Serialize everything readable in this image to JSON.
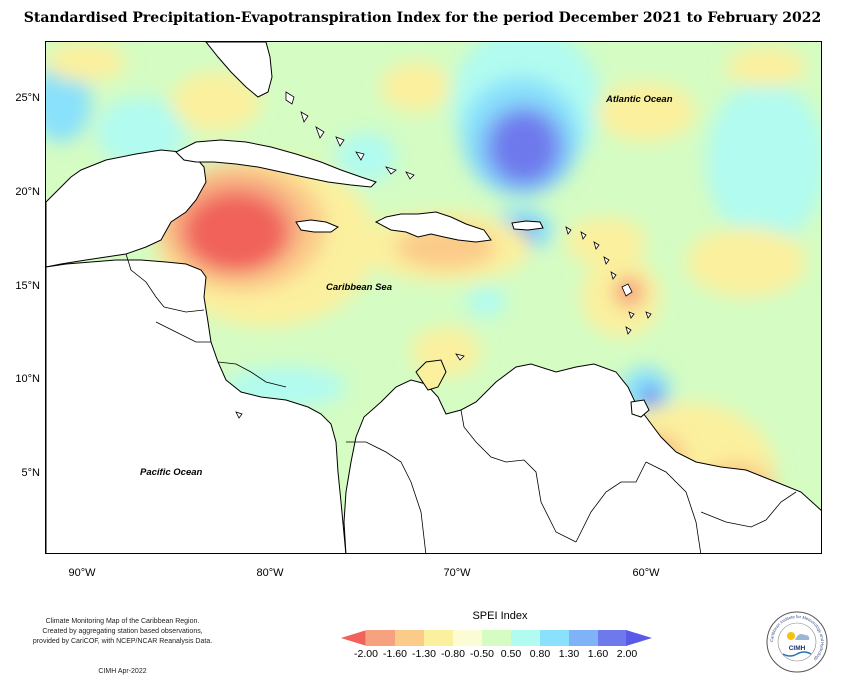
{
  "title": "Standardised Precipitation-Evapotranspiration Index for the period December 2021 to February 2022",
  "map": {
    "latitude_labels": [
      "25°N",
      "20°N",
      "15°N",
      "10°N",
      "5°N"
    ],
    "longitude_labels": [
      "90°W",
      "80°W",
      "70°W",
      "60°W"
    ],
    "region_labels": {
      "atlantic": "Atlantic Ocean",
      "caribbean": "Caribbean Sea",
      "pacific": "Pacific Ocean"
    }
  },
  "legend": {
    "title": "SPEI Index",
    "ticks": [
      "-2.00",
      "-1.60",
      "-1.30",
      "-0.80",
      "-0.50",
      "0.50",
      "0.80",
      "1.30",
      "1.60",
      "2.00"
    ],
    "colors": [
      "#f0625a",
      "#f6a27f",
      "#fbcb8a",
      "#fbf09e",
      "#fbfbd6",
      "#d4fcc3",
      "#b1fbf0",
      "#89e1fb",
      "#7fb3f7",
      "#6e79ec",
      "#5a5ae8"
    ]
  },
  "credits": {
    "lines": [
      "Climate Monitoring Map of the Caribbean Region.",
      "Created by aggregating station based observations,",
      "provided by CariCOF, with NCEP/NCAR Reanalysis Data."
    ],
    "date": "CIMH Apr-2022"
  },
  "logo": {
    "text": "CIMH",
    "ring_text": "Caribbean Institute for Meteorology and Hydrology"
  }
}
